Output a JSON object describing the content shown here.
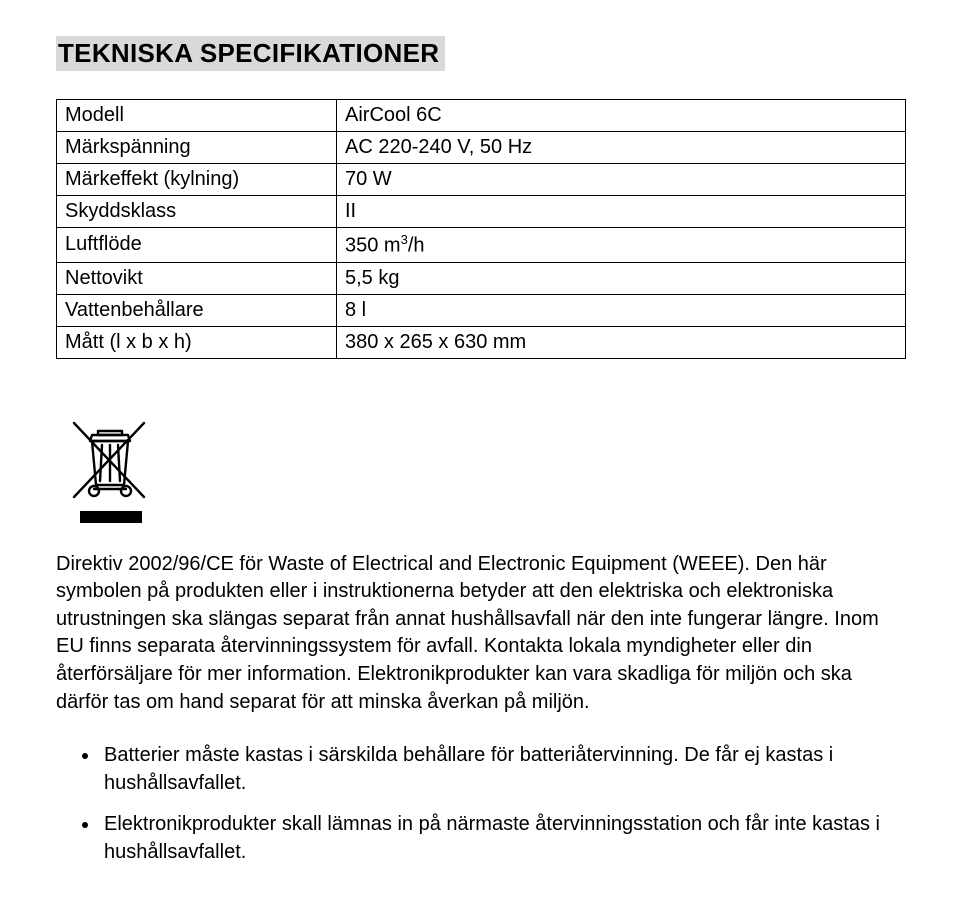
{
  "heading": "TEKNISKA SPECIFIKATIONER",
  "spec_table": {
    "rows": [
      {
        "label": "Modell",
        "value_html": "AirCool 6C"
      },
      {
        "label": "Märkspänning",
        "value_html": "AC 220-240 V, 50 Hz"
      },
      {
        "label": "Märkeffekt (kylning)",
        "value_html": "70 W"
      },
      {
        "label": "Skyddsklass",
        "value_html": "II"
      },
      {
        "label": "Luftflöde",
        "value_html": "350 m<span class=\"sup\">3</span>/h"
      },
      {
        "label": "Nettovikt",
        "value_html": "5,5 kg"
      },
      {
        "label": "Vattenbehållare",
        "value_html": "8 l"
      },
      {
        "label": "Mått (l x b x h)",
        "value_html": "380 x 265 x 630 mm"
      }
    ]
  },
  "paragraph": "Direktiv 2002/96/CE för Waste of Electrical and Electronic Equipment (WEEE). Den här symbolen på produkten eller i instruktionerna betyder att den elektriska och elektroniska utrustningen ska slängas separat från annat hushållsavfall när den inte fungerar längre. Inom EU finns separata återvinningssystem för avfall. Kontakta lokala myndigheter eller din återförsäljare för mer information. Elektronikprodukter kan vara skadliga för miljön och ska därför tas om hand separat för att minska åverkan på miljön.",
  "bullets": [
    "Batterier måste kastas i särskilda behållare för batteriåtervinning. De får ej kastas i hushållsavfallet.",
    "Elektronikprodukter skall lämnas in på närmaste återvinningsstation och får inte kastas i hushållsavfallet."
  ],
  "colors": {
    "heading_bg": "#d9d9d9",
    "text": "#000000",
    "page_bg": "#ffffff",
    "border": "#000000"
  }
}
